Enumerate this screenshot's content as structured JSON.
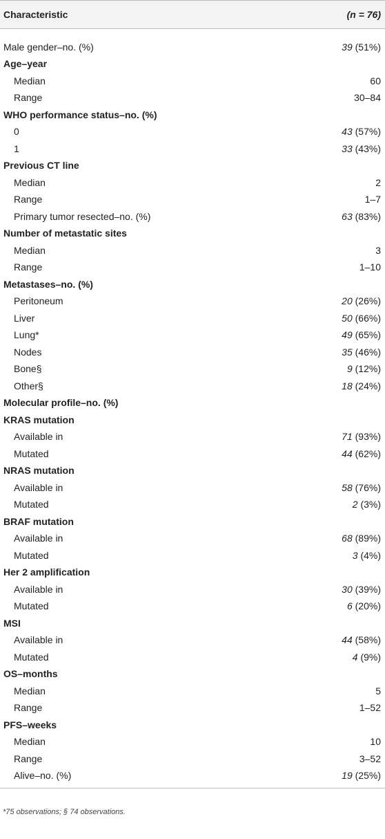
{
  "table": {
    "columns": [
      "Characteristic",
      "(n = 76)"
    ],
    "sections": [
      {
        "rows": [
          {
            "label": "Male gender–no. (%)",
            "n": 39,
            "pct": "(51%)"
          }
        ]
      },
      {
        "heading": "Age–year",
        "rows": [
          {
            "label": "Median",
            "value": "60"
          },
          {
            "label": "Range",
            "value": "30–84"
          }
        ]
      },
      {
        "heading": "WHO performance status–no. (%)",
        "rows": [
          {
            "label": "0",
            "n": 43,
            "pct": "(57%)"
          },
          {
            "label": "1",
            "n": 33,
            "pct": "(43%)"
          }
        ]
      },
      {
        "heading": "Previous CT line",
        "rows": [
          {
            "label": "Median",
            "value": "2"
          },
          {
            "label": "Range",
            "value": "1–7"
          },
          {
            "label": "Primary tumor resected–no. (%)",
            "n": 63,
            "pct": "(83%)"
          }
        ]
      },
      {
        "heading": "Number of metastatic sites",
        "rows": [
          {
            "label": "Median",
            "value": "3"
          },
          {
            "label": "Range",
            "value": "1–10"
          }
        ]
      },
      {
        "heading": "Metastases–no. (%)",
        "rows": [
          {
            "label": "Peritoneum",
            "n": 20,
            "pct": "(26%)"
          },
          {
            "label": "Liver",
            "n": 50,
            "pct": "(66%)"
          },
          {
            "label": "Lung*",
            "n": 49,
            "pct": "(65%)"
          },
          {
            "label": "Nodes",
            "n": 35,
            "pct": "(46%)"
          },
          {
            "label": "Bone§",
            "n": 9,
            "pct": "(12%)"
          },
          {
            "label": "Other§",
            "n": 18,
            "pct": "(24%)"
          }
        ]
      },
      {
        "heading": "Molecular profile–no. (%)",
        "rows": []
      },
      {
        "heading": "KRAS mutation",
        "rows": [
          {
            "label": "Available in",
            "n": 71,
            "pct": "(93%)"
          },
          {
            "label": "Mutated",
            "n": 44,
            "pct": "(62%)"
          }
        ]
      },
      {
        "heading": "NRAS mutation",
        "rows": [
          {
            "label": "Available in",
            "n": 58,
            "pct": "(76%)"
          },
          {
            "label": "Mutated",
            "n": 2,
            "pct": "(3%)"
          }
        ]
      },
      {
        "heading": "BRAF mutation",
        "rows": [
          {
            "label": "Available in",
            "n": 68,
            "pct": "(89%)"
          },
          {
            "label": "Mutated",
            "n": 3,
            "pct": "(4%)"
          }
        ]
      },
      {
        "heading": "Her 2 amplification",
        "rows": [
          {
            "label": "Available in",
            "n": 30,
            "pct": "(39%)"
          },
          {
            "label": "Mutated",
            "n": 6,
            "pct": "(20%)"
          }
        ]
      },
      {
        "heading": "MSI",
        "rows": [
          {
            "label": "Available in",
            "n": 44,
            "pct": "(58%)"
          },
          {
            "label": "Mutated",
            "n": 4,
            "pct": "(9%)"
          }
        ]
      },
      {
        "heading": "OS–months",
        "rows": [
          {
            "label": "Median",
            "value": "5"
          },
          {
            "label": "Range",
            "value": "1–52"
          }
        ]
      },
      {
        "heading": "PFS–weeks",
        "rows": [
          {
            "label": "Median",
            "value": "10"
          },
          {
            "label": "Range",
            "value": "3–52"
          },
          {
            "label": "Alive–no. (%)",
            "n": 19,
            "pct": "(25%)"
          }
        ]
      }
    ],
    "footnote": "*75 observations; § 74 observations."
  }
}
